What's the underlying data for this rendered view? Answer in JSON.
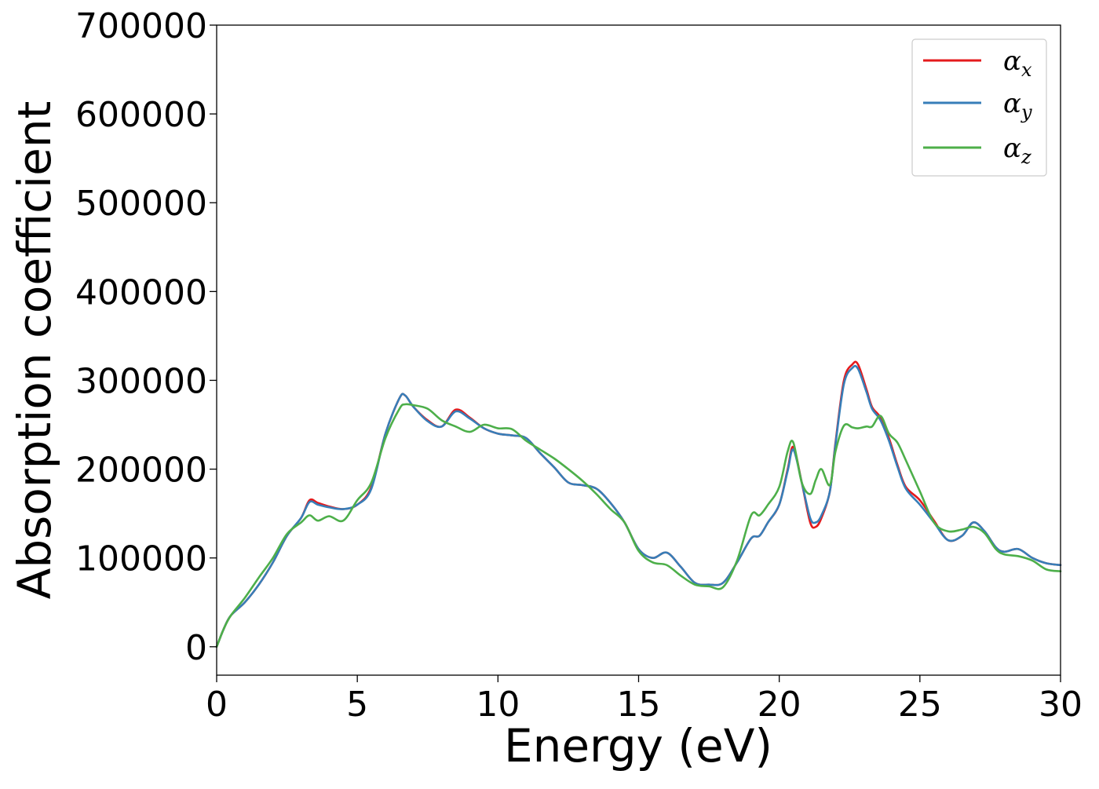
{
  "chart_data": {
    "type": "line",
    "title": "",
    "xlabel": "Energy (eV)",
    "ylabel": "Absorption coefficient",
    "xlim": [
      0,
      30
    ],
    "ylim": [
      -32000,
      700000
    ],
    "xticks": [
      0,
      5,
      10,
      15,
      20,
      25,
      30
    ],
    "xtick_labels": [
      "0",
      "5",
      "10",
      "15",
      "20",
      "25",
      "30"
    ],
    "yticks": [
      0,
      100000,
      200000,
      300000,
      400000,
      500000,
      600000,
      700000
    ],
    "ytick_labels": [
      "0",
      "100000",
      "200000",
      "300000",
      "400000",
      "500000",
      "600000",
      "700000"
    ],
    "grid": false,
    "legend_position": "top-right",
    "x": [
      0,
      0.25,
      0.5,
      1,
      1.5,
      2,
      2.5,
      3,
      3.3,
      3.6,
      4,
      4.5,
      5,
      5.5,
      6,
      6.5,
      6.7,
      7,
      7.5,
      8,
      8.5,
      9,
      9.5,
      10,
      10.5,
      11,
      11.5,
      12,
      12.5,
      13,
      13.5,
      14,
      14.5,
      15,
      15.5,
      16,
      16.5,
      17,
      17.5,
      18,
      18.5,
      19,
      19.3,
      19.6,
      20,
      20.3,
      20.5,
      20.8,
      21.1,
      21.3,
      21.5,
      21.8,
      22,
      22.3,
      22.6,
      22.8,
      23.1,
      23.3,
      23.6,
      23.9,
      24.2,
      24.5,
      25,
      25.5,
      26,
      26.5,
      26.9,
      27.3,
      27.7,
      28,
      28.5,
      29,
      29.5,
      30
    ],
    "series": [
      {
        "name": "αx",
        "color": "#e41a1c",
        "values": [
          0,
          20000,
          35000,
          50000,
          70000,
          95000,
          125000,
          145000,
          165000,
          162000,
          158000,
          155000,
          160000,
          180000,
          240000,
          280000,
          283000,
          270000,
          255000,
          248000,
          267000,
          258000,
          246000,
          240000,
          238000,
          235000,
          218000,
          202000,
          185000,
          182000,
          178000,
          162000,
          140000,
          110000,
          100000,
          106000,
          90000,
          72000,
          70000,
          72000,
          95000,
          122000,
          125000,
          140000,
          160000,
          200000,
          225000,
          185000,
          140000,
          135000,
          145000,
          175000,
          230000,
          300000,
          318000,
          318000,
          290000,
          270000,
          258000,
          235000,
          205000,
          180000,
          165000,
          142000,
          120000,
          125000,
          140000,
          130000,
          112000,
          107000,
          110000,
          100000,
          94000,
          92000
        ]
      },
      {
        "name": "αy",
        "color": "#377eb8",
        "values": [
          0,
          20000,
          35000,
          50000,
          70000,
          95000,
          125000,
          145000,
          163000,
          160000,
          157000,
          155000,
          160000,
          178000,
          240000,
          280000,
          283000,
          270000,
          254000,
          248000,
          265000,
          257000,
          246000,
          240000,
          238000,
          235000,
          218000,
          202000,
          185000,
          182000,
          178000,
          162000,
          140000,
          110000,
          100000,
          106000,
          90000,
          72000,
          70000,
          72000,
          95000,
          122000,
          125000,
          140000,
          160000,
          198000,
          222000,
          185000,
          145000,
          140000,
          148000,
          175000,
          228000,
          296000,
          314000,
          313000,
          287000,
          268000,
          255000,
          232000,
          203000,
          178000,
          160000,
          140000,
          120000,
          125000,
          140000,
          130000,
          112000,
          107000,
          110000,
          100000,
          94000,
          92000
        ]
      },
      {
        "name": "αz",
        "color": "#4daf4a",
        "values": [
          0,
          20000,
          35000,
          55000,
          78000,
          100000,
          127000,
          140000,
          148000,
          142000,
          147000,
          142000,
          165000,
          185000,
          235000,
          268000,
          273000,
          272000,
          268000,
          255000,
          248000,
          242000,
          250000,
          246000,
          245000,
          232000,
          222000,
          212000,
          200000,
          187000,
          172000,
          155000,
          140000,
          108000,
          95000,
          92000,
          80000,
          70000,
          68000,
          67000,
          97000,
          148000,
          148000,
          160000,
          180000,
          220000,
          230000,
          185000,
          172000,
          188000,
          200000,
          182000,
          220000,
          249000,
          247000,
          246000,
          248000,
          248000,
          260000,
          240000,
          230000,
          210000,
          175000,
          140000,
          130000,
          132000,
          135000,
          128000,
          110000,
          104000,
          102000,
          97000,
          87000,
          85000
        ]
      }
    ]
  }
}
